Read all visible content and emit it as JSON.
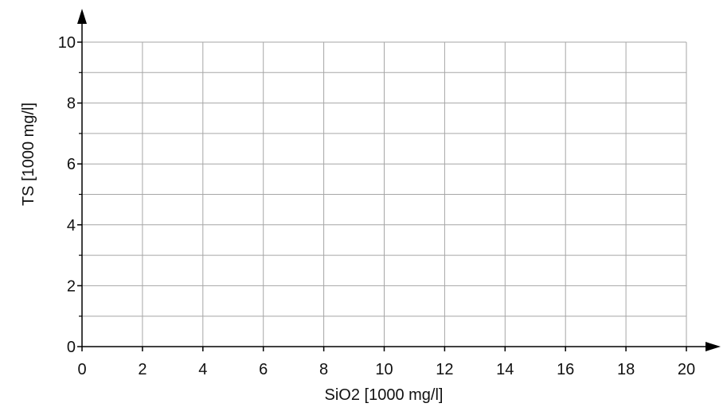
{
  "chart_data": {
    "type": "scatter",
    "title": "",
    "xlabel": "SiO2 [1000 mg/l]",
    "ylabel": "TS [1000 mg/l]",
    "xlim": [
      0,
      20
    ],
    "ylim": [
      0,
      10
    ],
    "x_ticks": [
      "0",
      "2",
      "4",
      "6",
      "8",
      "10",
      "12",
      "14",
      "16",
      "18",
      "20"
    ],
    "y_ticks": [
      "0",
      "2",
      "4",
      "6",
      "8",
      "10"
    ],
    "x_grid_step": 2,
    "y_grid_step": 1,
    "grid": true,
    "series": [],
    "colors": {
      "grid": "#a6a6a6",
      "axis": "#000000"
    }
  }
}
